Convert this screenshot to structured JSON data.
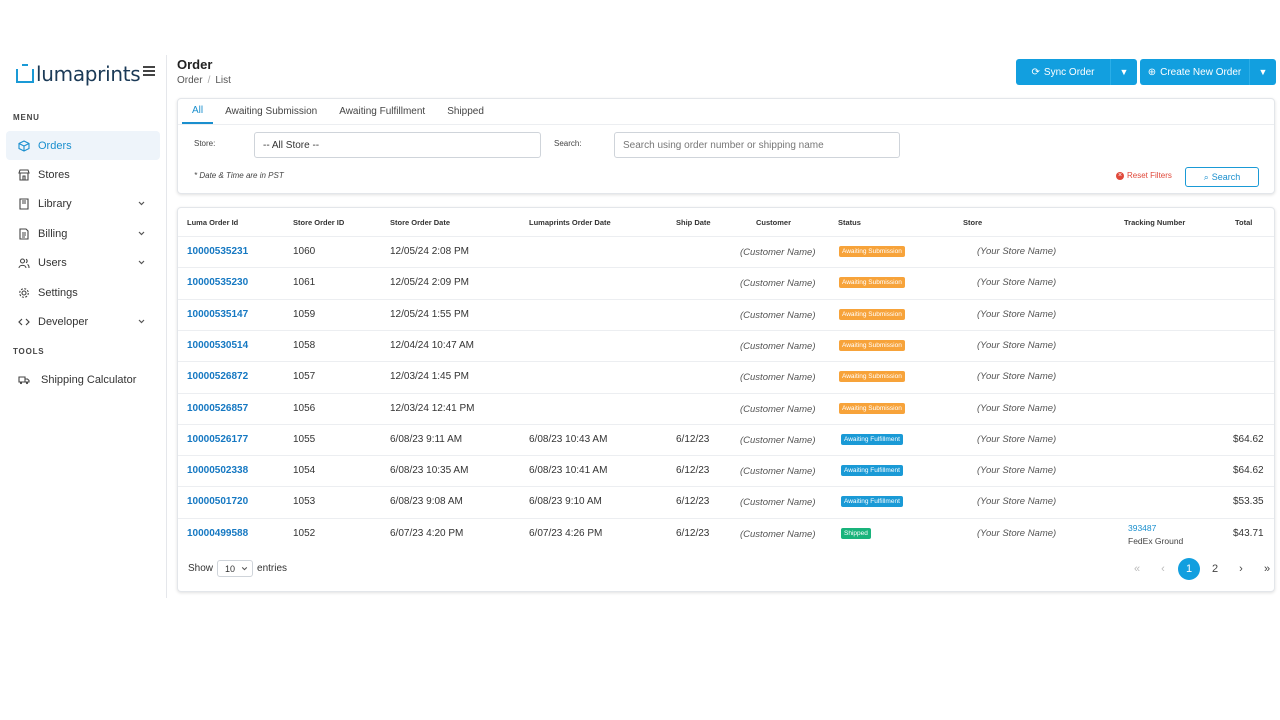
{
  "brand": {
    "name": "lumaprints",
    "color": "#1a9ad6"
  },
  "sidebar": {
    "menu_label": "MENU",
    "tools_label": "TOOLS",
    "items": [
      {
        "label": "Orders",
        "icon": "box-icon",
        "active": true
      },
      {
        "label": "Stores",
        "icon": "store-icon"
      },
      {
        "label": "Library",
        "icon": "book-icon",
        "expandable": true
      },
      {
        "label": "Billing",
        "icon": "billing-icon",
        "expandable": true
      },
      {
        "label": "Users",
        "icon": "users-icon",
        "expandable": true
      },
      {
        "label": "Settings",
        "icon": "gear-icon"
      },
      {
        "label": "Developer",
        "icon": "code-icon",
        "expandable": true
      }
    ],
    "tools": [
      {
        "label": "Shipping Calculator",
        "icon": "truck-icon"
      }
    ]
  },
  "header": {
    "title": "Order",
    "breadcrumb": [
      "Order",
      "List"
    ],
    "sync_label": "Sync Order",
    "create_label": "Create New Order"
  },
  "filters": {
    "tabs": [
      "All",
      "Awaiting Submission",
      "Awaiting Fulfillment",
      "Shipped"
    ],
    "active_tab": "All",
    "store_label": "Store:",
    "store_value": "-- All Store --",
    "search_label": "Search:",
    "search_placeholder": "Search using order number or shipping name",
    "note": "* Date & Time are in PST",
    "reset_label": "Reset Filters",
    "search_button": "Search"
  },
  "table": {
    "columns": [
      "Luma Order Id",
      "Store Order ID",
      "Store Order Date",
      "Lumaprints Order Date",
      "Ship Date",
      "Customer",
      "Status",
      "Store",
      "Tracking Number",
      "Total"
    ],
    "rows": [
      {
        "id": "10000535231",
        "store_id": "1060",
        "store_date": "12/05/24 2:08 PM",
        "luma_date": "",
        "ship": "",
        "customer": "(Customer Name)",
        "status": "Awaiting Submission",
        "status_type": "sub",
        "store": "(Your Store Name)",
        "tracking": "",
        "carrier": "",
        "total": ""
      },
      {
        "id": "10000535230",
        "store_id": "1061",
        "store_date": "12/05/24 2:09 PM",
        "luma_date": "",
        "ship": "",
        "customer": "(Customer Name)",
        "status": "Awaiting Submission",
        "status_type": "sub",
        "store": "(Your Store Name)",
        "tracking": "",
        "carrier": "",
        "total": ""
      },
      {
        "id": "10000535147",
        "store_id": "1059",
        "store_date": "12/05/24 1:55 PM",
        "luma_date": "",
        "ship": "",
        "customer": "(Customer Name)",
        "status": "Awaiting Submission",
        "status_type": "sub",
        "store": "(Your Store Name)",
        "tracking": "",
        "carrier": "",
        "total": ""
      },
      {
        "id": "10000530514",
        "store_id": "1058",
        "store_date": "12/04/24 10:47 AM",
        "luma_date": "",
        "ship": "",
        "customer": "(Customer Name)",
        "status": "Awaiting Submission",
        "status_type": "sub",
        "store": "(Your Store Name)",
        "tracking": "",
        "carrier": "",
        "total": ""
      },
      {
        "id": "10000526872",
        "store_id": "1057",
        "store_date": "12/03/24 1:45 PM",
        "luma_date": "",
        "ship": "",
        "customer": "(Customer Name)",
        "status": "Awaiting Submission",
        "status_type": "sub",
        "store": "(Your Store Name)",
        "tracking": "",
        "carrier": "",
        "total": ""
      },
      {
        "id": "10000526857",
        "store_id": "1056",
        "store_date": "12/03/24 12:41 PM",
        "luma_date": "",
        "ship": "",
        "customer": "(Customer Name)",
        "status": "Awaiting Submission",
        "status_type": "sub",
        "store": "(Your Store Name)",
        "tracking": "",
        "carrier": "",
        "total": ""
      },
      {
        "id": "10000526177",
        "store_id": "1055",
        "store_date": "6/08/23 9:11 AM",
        "luma_date": "6/08/23 10:43 AM",
        "ship": "6/12/23",
        "customer": "(Customer Name)",
        "status": "Awaiting Fulfillment",
        "status_type": "ful",
        "store": "(Your Store Name)",
        "tracking": "",
        "carrier": "",
        "total": "$64.62"
      },
      {
        "id": "10000502338",
        "store_id": "1054",
        "store_date": "6/08/23 10:35 AM",
        "luma_date": "6/08/23 10:41 AM",
        "ship": "6/12/23",
        "customer": "(Customer Name)",
        "status": "Awaiting Fulfillment",
        "status_type": "ful",
        "store": "(Your Store Name)",
        "tracking": "",
        "carrier": "",
        "total": "$64.62"
      },
      {
        "id": "10000501720",
        "store_id": "1053",
        "store_date": "6/08/23 9:08 AM",
        "luma_date": "6/08/23 9:10 AM",
        "ship": "6/12/23",
        "customer": "(Customer Name)",
        "status": "Awaiting Fulfillment",
        "status_type": "ful",
        "store": "(Your Store Name)",
        "tracking": "",
        "carrier": "",
        "total": "$53.35"
      },
      {
        "id": "10000499588",
        "store_id": "1052",
        "store_date": "6/07/23 4:20 PM",
        "luma_date": "6/07/23 4:26 PM",
        "ship": "6/12/23",
        "customer": "(Customer Name)",
        "status": "Shipped",
        "status_type": "shp",
        "store": "(Your Store Name)",
        "tracking": "393487",
        "carrier": "FedEx Ground",
        "total": "$43.71"
      }
    ]
  },
  "footer": {
    "show_label": "Show",
    "entries_value": "10",
    "entries_label": "entries",
    "pages": [
      "«",
      "‹",
      "1",
      "2",
      "›",
      "»"
    ],
    "current_page": "1"
  },
  "colors": {
    "accent": "#129fdf",
    "awaiting_submission": "#f7a33a",
    "awaiting_fulfillment": "#1a9ad6",
    "shipped": "#19b37b",
    "reset": "#e0483a"
  }
}
